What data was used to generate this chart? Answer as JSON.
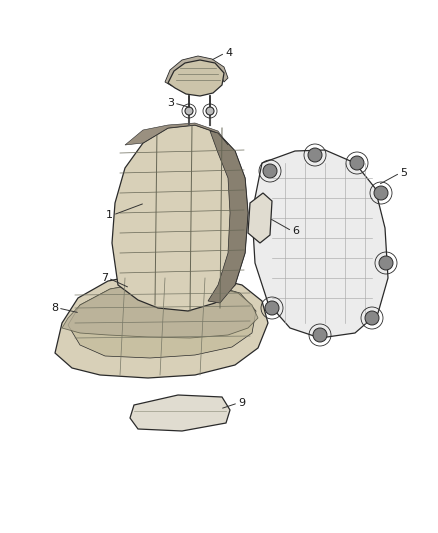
{
  "background_color": "#ffffff",
  "figsize": [
    4.38,
    5.33
  ],
  "dpi": 100,
  "line_color": "#2a2a2a",
  "fill_seat": "#d8d0b8",
  "fill_frame": "#e8e8e8",
  "fill_pad": "#e0dcd0",
  "fill_dark": "#888070",
  "fill_headrest": "#ccc4aa",
  "lw_main": 0.9,
  "lw_inner": 0.5
}
